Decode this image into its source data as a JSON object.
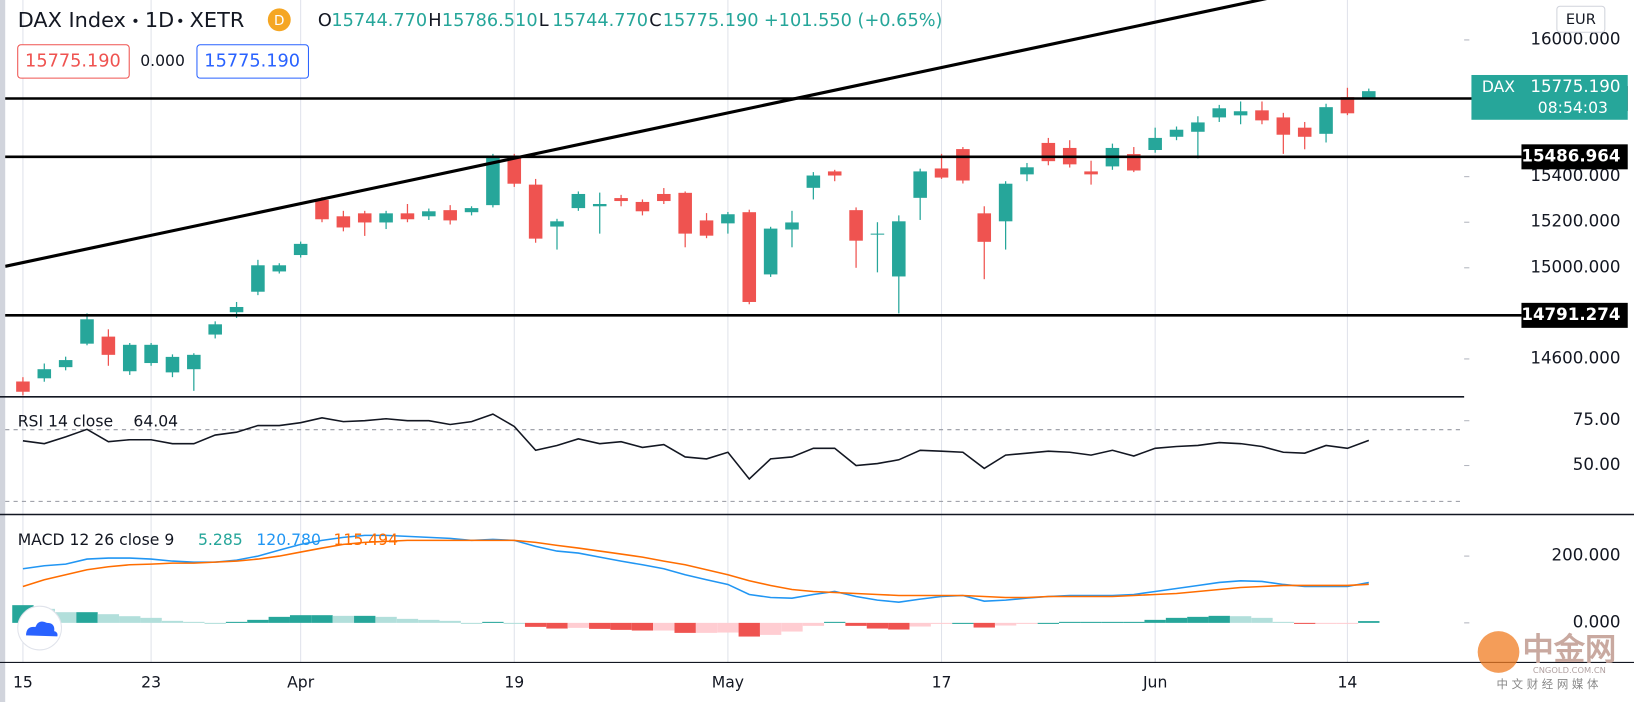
{
  "header": {
    "symbol": "DAX Index",
    "interval": "1D",
    "exchange": "XETR",
    "badge": "D",
    "ohlc": [
      {
        "key": "O",
        "value": "15744.770"
      },
      {
        "key": "H",
        "value": "15786.510"
      },
      {
        "key": "L",
        "value": "15744.770"
      },
      {
        "key": "C",
        "value": "15775.190"
      }
    ],
    "change": "+101.550 (+0.65%)",
    "price_boxes": [
      "15775.190",
      "0.000",
      "15775.190"
    ],
    "currency": "EUR",
    "price_tag": {
      "symbol": "DAX",
      "price": "15775.190",
      "countdown": "08:54:03"
    }
  },
  "watermark": {
    "name": "中金网",
    "site": "CNGOLD.COM.CN",
    "slogan": "中 文 财 经 网 媒 体"
  },
  "chart_data": [
    {
      "type": "candlestick",
      "up_color": "#26a69a",
      "down_color": "#ef5350",
      "categories": [
        "15",
        null,
        null,
        null,
        null,
        null,
        "23",
        null,
        null,
        null,
        null,
        null,
        null,
        "Apr",
        null,
        null,
        null,
        null,
        null,
        null,
        null,
        null,
        null,
        "19",
        null,
        null,
        null,
        null,
        null,
        null,
        null,
        null,
        null,
        "May",
        null,
        null,
        null,
        null,
        null,
        null,
        null,
        null,
        null,
        "17",
        null,
        null,
        null,
        null,
        null,
        null,
        null,
        null,
        null,
        "Jun",
        null,
        null,
        null,
        null,
        null,
        null,
        null,
        null,
        "14",
        null
      ],
      "open": [
        14501,
        14515,
        14564,
        14667,
        14698,
        14546,
        14582,
        14541,
        14555,
        14707,
        14805,
        14895,
        14984,
        15056,
        15298,
        15226,
        15239,
        15199,
        15239,
        15226,
        15253,
        15244,
        15275,
        15485,
        15365,
        15181,
        15262,
        15270,
        15306,
        15289,
        15324,
        15329,
        15208,
        15195,
        15244,
        14971,
        15168,
        15351,
        15423,
        15253,
        15146,
        14962,
        15307,
        15436,
        15521,
        15239,
        15204,
        15410,
        15548,
        15526,
        15423,
        15445,
        15499,
        15517,
        15575,
        15597,
        15660,
        15669,
        15691,
        15660,
        15615,
        15588,
        15749,
        15744.77
      ],
      "high": [
        14520,
        14580,
        14610,
        14800,
        14730,
        14670,
        14670,
        14620,
        14625,
        14765,
        14850,
        15035,
        15020,
        15115,
        15310,
        15250,
        15250,
        15250,
        15280,
        15260,
        15275,
        15270,
        15500,
        15500,
        15390,
        15215,
        15335,
        15330,
        15320,
        15300,
        15350,
        15335,
        15240,
        15245,
        15255,
        15180,
        15250,
        15420,
        15430,
        15265,
        15200,
        15230,
        15435,
        15500,
        15530,
        15270,
        15380,
        15460,
        15570,
        15560,
        15470,
        15545,
        15530,
        15615,
        15620,
        15665,
        15715,
        15730,
        15730,
        15680,
        15640,
        15720,
        15790,
        15786.51
      ],
      "low": [
        14440,
        14500,
        14550,
        14660,
        14570,
        14530,
        14570,
        14520,
        14460,
        14690,
        14780,
        14880,
        14975,
        15045,
        15200,
        15160,
        15140,
        15170,
        15200,
        15210,
        15190,
        15230,
        15265,
        15355,
        15110,
        15080,
        15250,
        15150,
        15270,
        15230,
        15280,
        15090,
        15130,
        15150,
        14840,
        14960,
        15090,
        15300,
        15380,
        15000,
        14980,
        14800,
        15210,
        15390,
        15370,
        14950,
        15080,
        15380,
        15450,
        15440,
        15365,
        15430,
        15420,
        15505,
        15560,
        15480,
        15640,
        15630,
        15630,
        15500,
        15520,
        15550,
        15670,
        15744.77
      ],
      "close": [
        14456,
        14555,
        14595,
        14774,
        14618,
        14662,
        14662,
        14609,
        14618,
        14752,
        14828,
        15011,
        15011,
        15105,
        15213,
        15177,
        15199,
        15239,
        15213,
        15248,
        15208,
        15262,
        15485,
        15369,
        15128,
        15204,
        15324,
        15280,
        15293,
        15248,
        15293,
        15150,
        15141,
        15235,
        14850,
        15172,
        15199,
        15405,
        15405,
        15119,
        15150,
        15204,
        15423,
        15396,
        15383,
        15114,
        15369,
        15441,
        15468,
        15454,
        15410,
        15526,
        15427,
        15570,
        15606,
        15638,
        15700,
        15687,
        15647,
        15584,
        15575,
        15705,
        15678,
        15775.19
      ],
      "ylim": [
        14452,
        16157
      ],
      "yticks": [
        {
          "value": 16000,
          "label": "16000.000"
        },
        {
          "value": 15400,
          "label": "15400.000"
        },
        {
          "value": 15200,
          "label": "15200.000"
        },
        {
          "value": 15000,
          "label": "15000.000"
        },
        {
          "value": 14600,
          "label": "14600.000"
        }
      ],
      "levels": [
        15743.011,
        15486.964,
        14791.274
      ],
      "trendline": {
        "start": 15023,
        "end": 16277
      }
    },
    {
      "type": "line",
      "title": "RSI 14 close",
      "color": "#131722",
      "series": [
        {
          "name": "RSI",
          "color": "#131722",
          "values": [
            63.8,
            62.2,
            66.0,
            70.2,
            63.3,
            64.4,
            64.4,
            62.2,
            62.2,
            67.0,
            68.6,
            72.3,
            72.3,
            73.9,
            76.6,
            74.5,
            75.0,
            76.1,
            75.0,
            75.0,
            72.9,
            74.5,
            78.7,
            71.8,
            58.5,
            61.2,
            64.9,
            62.2,
            63.3,
            60.1,
            61.7,
            54.8,
            53.7,
            57.4,
            42.5,
            53.7,
            54.8,
            59.6,
            59.6,
            50.0,
            51.1,
            53.2,
            58.5,
            58.0,
            57.4,
            48.4,
            55.8,
            56.9,
            58.0,
            57.4,
            55.8,
            58.5,
            55.3,
            59.6,
            60.6,
            61.2,
            62.8,
            62.2,
            60.6,
            57.4,
            56.9,
            61.2,
            59.6,
            64.04
          ]
        }
      ],
      "ylim": [
        25,
        86
      ],
      "yticks": [
        {
          "value": 75,
          "label": "75.00"
        },
        {
          "value": 50,
          "label": "50.00"
        }
      ],
      "band_levels": [
        30,
        70
      ]
    },
    {
      "type": "macd",
      "title": "MACD 12 26 close 9",
      "hist_colors": [
        "#26a69a",
        "#b2dfdb",
        "#ffcdd2",
        "#ef5350"
      ],
      "series": [
        {
          "name": "Histogram",
          "color": "#26a69a",
          "last_value_label": "5.285",
          "values": [
            53,
            42,
            32,
            32,
            26,
            20,
            15,
            6,
            3,
            0,
            3,
            9,
            18,
            23,
            23,
            21,
            21,
            18,
            12,
            9,
            6,
            0,
            3,
            0,
            -12,
            -17,
            -15,
            -18,
            -21,
            -23,
            -23,
            -30,
            -30,
            -29,
            -41,
            -36,
            -26,
            -9,
            3,
            -9,
            -17,
            -20,
            -11,
            -3,
            0,
            -14,
            -8,
            -2,
            0,
            3,
            3,
            3,
            3,
            9,
            15,
            18,
            21,
            20,
            15,
            3,
            -3,
            -3,
            -3,
            5.285
          ]
        },
        {
          "name": "MACD",
          "color": "#2196f3",
          "last_value_label": "120.780",
          "values": [
            162,
            171,
            176,
            191,
            194,
            194,
            191,
            185,
            182,
            182,
            188,
            200,
            218,
            235,
            247,
            256,
            262,
            262,
            259,
            256,
            253,
            247,
            250,
            247,
            229,
            215,
            209,
            197,
            185,
            174,
            162,
            144,
            129,
            115,
            85,
            76,
            74,
            85,
            94,
            79,
            68,
            62,
            71,
            79,
            82,
            65,
            68,
            74,
            79,
            82,
            82,
            82,
            85,
            94,
            103,
            112,
            121,
            126,
            124,
            115,
            109,
            109,
            109,
            120.78
          ]
        },
        {
          "name": "Signal",
          "color": "#ff6d00",
          "last_value_label": "115.494",
          "values": [
            109,
            129,
            144,
            159,
            168,
            174,
            176,
            179,
            179,
            182,
            185,
            191,
            200,
            212,
            224,
            235,
            241,
            244,
            247,
            247,
            247,
            247,
            247,
            247,
            241,
            232,
            224,
            215,
            206,
            197,
            185,
            174,
            159,
            144,
            126,
            112,
            100,
            94,
            91,
            88,
            85,
            82,
            82,
            82,
            82,
            79,
            76,
            76,
            79,
            79,
            79,
            79,
            82,
            85,
            88,
            94,
            100,
            106,
            109,
            112,
            112,
            112,
            112,
            115.494
          ]
        }
      ],
      "ylim": [
        -106,
        312
      ],
      "yticks": [
        {
          "value": 200,
          "label": "200.000"
        },
        {
          "value": 0,
          "label": "0.000"
        }
      ]
    }
  ]
}
